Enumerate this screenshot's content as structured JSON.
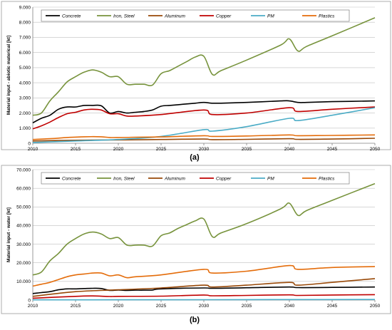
{
  "chart_data": [
    {
      "type": "line",
      "ylabel": "Material input - abiotic materical [kt]",
      "caption": "(a)",
      "x_ticks": [
        "2010",
        "2015",
        "2020",
        "2025",
        "2030",
        "2035",
        "2040",
        "2045",
        "2050"
      ],
      "y_ticks": [
        "0",
        "1.000",
        "2.000",
        "3.000",
        "4.000",
        "5.000",
        "6.000",
        "7.000",
        "8.000",
        "9.000"
      ],
      "xlim": [
        2010,
        2050
      ],
      "ylim": [
        0,
        9000
      ],
      "grid": true,
      "legend_position": "top",
      "series": [
        {
          "name": "Concrete",
          "color": "#000000",
          "x": [
            2010,
            2011,
            2012,
            2013,
            2014,
            2015,
            2016,
            2017,
            2018,
            2019,
            2020,
            2021,
            2022,
            2023,
            2024,
            2025,
            2026,
            2027,
            2028,
            2029,
            2030,
            2031,
            2032,
            2035,
            2039,
            2040,
            2041,
            2042,
            2045,
            2050
          ],
          "y": [
            1350,
            1650,
            1850,
            2250,
            2400,
            2400,
            2500,
            2500,
            2480,
            2000,
            2100,
            2000,
            2050,
            2100,
            2200,
            2450,
            2500,
            2550,
            2600,
            2650,
            2700,
            2650,
            2650,
            2700,
            2800,
            2800,
            2700,
            2700,
            2750,
            2800
          ]
        },
        {
          "name": "Iron, Steel",
          "color": "#77933c",
          "x": [
            2010,
            2011,
            2012,
            2013,
            2014,
            2015,
            2016,
            2017,
            2018,
            2019,
            2020,
            2021,
            2022,
            2023,
            2024,
            2025,
            2026,
            2027,
            2028,
            2029,
            2030,
            2031,
            2032,
            2035,
            2039,
            2040,
            2041,
            2042,
            2045,
            2050
          ],
          "y": [
            1850,
            2000,
            2800,
            3400,
            4050,
            4400,
            4700,
            4850,
            4700,
            4400,
            4400,
            3900,
            3900,
            3900,
            3850,
            4600,
            4800,
            5100,
            5400,
            5700,
            5750,
            4550,
            4800,
            5500,
            6500,
            6900,
            6100,
            6400,
            7100,
            8300
          ]
        },
        {
          "name": "Aluminum",
          "color": "#984807",
          "x": [
            2010,
            2015,
            2020,
            2025,
            2030,
            2031,
            2035,
            2040,
            2041,
            2045,
            2050
          ],
          "y": [
            150,
            200,
            220,
            250,
            280,
            240,
            260,
            300,
            260,
            280,
            330
          ]
        },
        {
          "name": "Copper",
          "color": "#c00000",
          "x": [
            2010,
            2011,
            2012,
            2013,
            2014,
            2015,
            2016,
            2017,
            2018,
            2019,
            2020,
            2021,
            2022,
            2025,
            2030,
            2031,
            2035,
            2040,
            2041,
            2045,
            2050
          ],
          "y": [
            950,
            1150,
            1400,
            1700,
            1950,
            2050,
            2200,
            2250,
            2200,
            1950,
            1950,
            1800,
            1800,
            1900,
            2200,
            1900,
            2000,
            2350,
            2100,
            2250,
            2400
          ]
        },
        {
          "name": "PM",
          "color": "#4bacc6",
          "x": [
            2010,
            2015,
            2020,
            2025,
            2030,
            2031,
            2035,
            2040,
            2041,
            2045,
            2050
          ],
          "y": [
            50,
            150,
            250,
            450,
            900,
            800,
            1100,
            1650,
            1500,
            1850,
            2350
          ]
        },
        {
          "name": "Plastics",
          "color": "#e46c0a",
          "x": [
            2010,
            2012,
            2014,
            2016,
            2018,
            2019,
            2020,
            2022,
            2025,
            2030,
            2031,
            2035,
            2040,
            2041,
            2045,
            2050
          ],
          "y": [
            250,
            300,
            380,
            430,
            430,
            380,
            380,
            400,
            420,
            500,
            450,
            480,
            550,
            500,
            520,
            550
          ]
        }
      ]
    },
    {
      "type": "line",
      "ylabel": "Material input - water [kt]",
      "caption": "(b)",
      "x_ticks": [
        "2010",
        "2015",
        "2020",
        "2025",
        "2030",
        "2035",
        "2040",
        "2045",
        "2050"
      ],
      "y_ticks": [
        "0",
        "10.000",
        "20.000",
        "30.000",
        "40.000",
        "50.000",
        "60.000",
        "70.000"
      ],
      "xlim": [
        2010,
        2050
      ],
      "ylim": [
        0,
        70000
      ],
      "grid": true,
      "legend_position": "top",
      "series": [
        {
          "name": "Concrete",
          "color": "#000000",
          "x": [
            2010,
            2011,
            2012,
            2013,
            2014,
            2015,
            2016,
            2017,
            2018,
            2019,
            2020,
            2021,
            2022,
            2023,
            2024,
            2025,
            2030,
            2031,
            2035,
            2040,
            2041,
            2045,
            2050
          ],
          "y": [
            3500,
            4000,
            4500,
            5500,
            6000,
            6000,
            6200,
            6300,
            6200,
            5200,
            5400,
            5200,
            5300,
            5300,
            5400,
            6000,
            6500,
            6300,
            6600,
            7000,
            6700,
            6800,
            7000
          ]
        },
        {
          "name": "Iron, Steel",
          "color": "#77933c",
          "x": [
            2010,
            2011,
            2012,
            2013,
            2014,
            2015,
            2016,
            2017,
            2018,
            2019,
            2020,
            2021,
            2022,
            2023,
            2024,
            2025,
            2026,
            2027,
            2028,
            2029,
            2030,
            2031,
            2032,
            2035,
            2039,
            2040,
            2041,
            2042,
            2045,
            2050
          ],
          "y": [
            13500,
            15000,
            21000,
            25000,
            30000,
            33000,
            35500,
            36500,
            35500,
            33000,
            33500,
            29500,
            29500,
            29500,
            29000,
            34500,
            36000,
            38500,
            40500,
            42500,
            43500,
            34000,
            36000,
            41000,
            49000,
            52000,
            45500,
            48000,
            53500,
            62500
          ]
        },
        {
          "name": "Aluminum",
          "color": "#984807",
          "x": [
            2010,
            2015,
            2020,
            2025,
            2030,
            2031,
            2035,
            2040,
            2041,
            2045,
            2050
          ],
          "y": [
            2000,
            4500,
            5500,
            6500,
            8000,
            7000,
            8000,
            9500,
            8000,
            9500,
            11500
          ]
        },
        {
          "name": "Copper",
          "color": "#c00000",
          "x": [
            2010,
            2015,
            2017,
            2019,
            2020,
            2025,
            2030,
            2031,
            2035,
            2040,
            2041,
            2045,
            2050
          ],
          "y": [
            1000,
            2000,
            2200,
            1900,
            2000,
            2100,
            2700,
            2300,
            2500,
            2800,
            2500,
            2700,
            2900
          ]
        },
        {
          "name": "PM",
          "color": "#4bacc6",
          "x": [
            2010,
            2020,
            2030,
            2040,
            2050
          ],
          "y": [
            100,
            150,
            200,
            250,
            300
          ]
        },
        {
          "name": "Plastics",
          "color": "#e46c0a",
          "x": [
            2010,
            2011,
            2012,
            2013,
            2014,
            2015,
            2016,
            2017,
            2018,
            2019,
            2020,
            2021,
            2022,
            2025,
            2030,
            2031,
            2035,
            2040,
            2041,
            2045,
            2050
          ],
          "y": [
            7500,
            8500,
            9500,
            11000,
            12500,
            13500,
            14000,
            14500,
            14500,
            13000,
            13500,
            12000,
            12500,
            13500,
            16500,
            14500,
            15500,
            18500,
            16500,
            17500,
            18000
          ]
        }
      ]
    }
  ]
}
